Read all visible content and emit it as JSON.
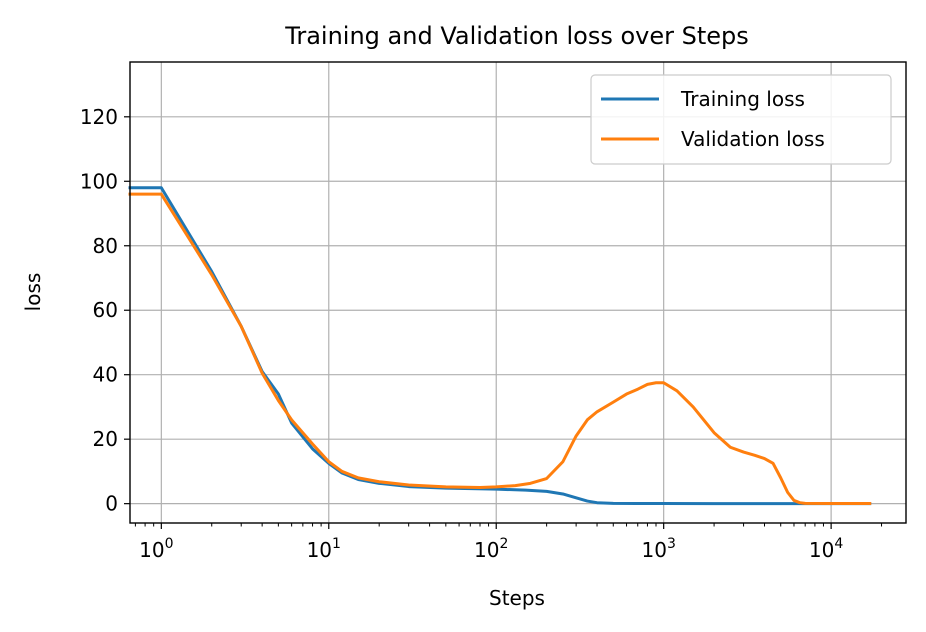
{
  "chart_data": {
    "type": "line",
    "title": "Training and Validation loss over Steps",
    "xlabel": "Steps",
    "ylabel": "loss",
    "xscale": "log",
    "xlim": [
      0.65,
      28000
    ],
    "ylim": [
      -6,
      137
    ],
    "grid": true,
    "legend_position": "top-right",
    "x_ticks": [
      {
        "value": 1,
        "base": "10",
        "exp": "0"
      },
      {
        "value": 10,
        "base": "10",
        "exp": "1"
      },
      {
        "value": 100,
        "base": "10",
        "exp": "2"
      },
      {
        "value": 1000,
        "base": "10",
        "exp": "3"
      },
      {
        "value": 10000,
        "base": "10",
        "exp": "4"
      }
    ],
    "y_ticks": [
      0,
      20,
      40,
      60,
      80,
      100,
      120
    ],
    "series": [
      {
        "name": "Training loss",
        "color": "#1f77b4",
        "x": [
          0.65,
          1,
          2,
          3,
          4,
          5,
          6,
          8,
          10,
          12,
          15,
          20,
          30,
          50,
          100,
          150,
          200,
          250,
          300,
          350,
          400,
          500,
          700,
          1000,
          2000,
          5000,
          10000,
          17000
        ],
        "y": [
          98,
          98,
          72,
          55,
          41,
          34,
          25,
          17,
          12.5,
          9.5,
          7.5,
          6.3,
          5.3,
          4.8,
          4.5,
          4.2,
          3.8,
          3.0,
          1.8,
          0.8,
          0.3,
          0.1,
          0.05,
          0.03,
          0.02,
          0.01,
          0.01,
          0.01
        ]
      },
      {
        "name": "Validation loss",
        "color": "#ff7f0e",
        "x": [
          0.65,
          1,
          2,
          3,
          4,
          5,
          6,
          8,
          10,
          12,
          15,
          20,
          30,
          50,
          80,
          100,
          130,
          160,
          200,
          250,
          300,
          350,
          400,
          500,
          600,
          700,
          800,
          900,
          1000,
          1200,
          1500,
          2000,
          2500,
          3000,
          3500,
          4000,
          4500,
          5000,
          5500,
          6000,
          6500,
          7000,
          10000,
          17000
        ],
        "y": [
          96,
          96,
          71,
          55,
          40.5,
          32,
          26,
          18.5,
          13,
          10,
          8,
          6.8,
          5.8,
          5.2,
          5.0,
          5.2,
          5.6,
          6.3,
          7.8,
          13,
          21,
          26,
          28.5,
          31.5,
          34,
          35.5,
          37,
          37.5,
          37.5,
          35,
          30,
          22,
          17.5,
          16,
          15,
          14,
          12.5,
          8,
          3.5,
          1,
          0.3,
          0.1,
          0.05,
          0.05
        ]
      }
    ]
  }
}
